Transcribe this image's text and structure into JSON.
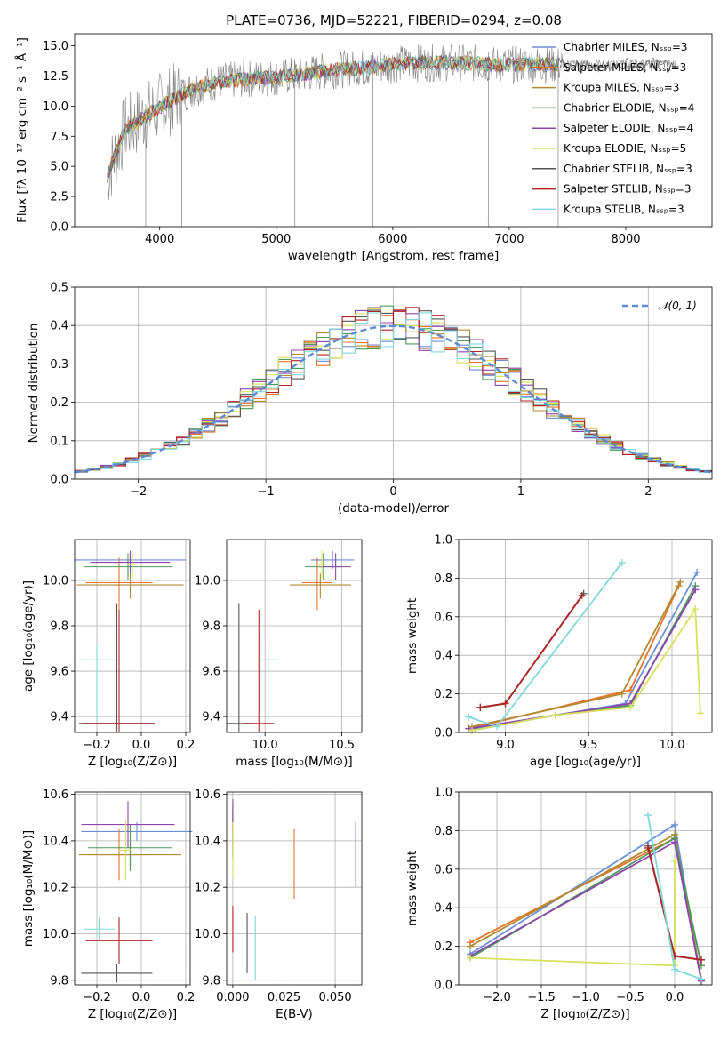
{
  "title": "PLATE=0736, MJD=52221, FIBERID=0294, z=0.08",
  "model_colors": [
    "#6a8fd8",
    "#e8732a",
    "#b08a2e",
    "#4a9a5a",
    "#8e44ad",
    "#d9e05a",
    "#555555",
    "#b22222",
    "#7fd8dc"
  ],
  "chart_data": [
    {
      "id": "spectrum",
      "type": "line",
      "xlabel": "wavelength [Angstrom, rest frame]",
      "ylabel": "Flux [fλ 10⁻¹⁷ erg cm⁻² s⁻¹ Å⁻¹]",
      "xlim": [
        3270,
        8740
      ],
      "ylim": [
        0,
        16
      ],
      "xticks": [
        "4000",
        "5000",
        "6000",
        "7000",
        "8000"
      ],
      "yticks": [
        "0.0",
        "2.5",
        "5.0",
        "7.5",
        "10.0",
        "12.5",
        "15.0"
      ],
      "grid": false,
      "legend_position": "upper right",
      "legend": [
        "Chabrier MILES, Nₛₛₚ=3",
        "Salpeter MILES, Nₛₛₚ=3",
        "Kroupa MILES, Nₛₛₚ=3",
        "Chabrier ELODIE, Nₛₛₚ=4",
        "Salpeter ELODIE, Nₛₛₚ=4",
        "Kroupa ELODIE, Nₛₛₚ=5",
        "Chabrier STELIB, Nₛₛₚ=3",
        "Salpeter STELIB, Nₛₛₚ=3",
        "Kroupa STELIB, Nₛₛₚ=3"
      ],
      "continuum": {
        "x": [
          3550,
          3700,
          3900,
          4100,
          4300,
          4500,
          4800,
          5000,
          5200,
          5500,
          5800,
          6000,
          6300,
          6600,
          6900,
          7200,
          7450
        ],
        "y": [
          4.2,
          8.0,
          9.3,
          10.5,
          11.5,
          12.0,
          12.3,
          12.4,
          12.6,
          13.0,
          13.2,
          13.5,
          13.6,
          13.6,
          13.4,
          13.5,
          13.4
        ]
      },
      "models_end_x": [
        7420,
        7420,
        7420,
        7420,
        7420,
        7420,
        8420,
        7420,
        7420
      ],
      "drops_x": [
        3880,
        4190,
        5160,
        5830,
        6820,
        7420
      ]
    },
    {
      "id": "residuals",
      "type": "histogram",
      "xlabel": "(data-model)/error",
      "ylabel": "Normed distribution",
      "xlim": [
        -2.5,
        2.5
      ],
      "ylim": [
        0,
        0.5
      ],
      "xticks": [
        "−2",
        "−1",
        "0",
        "1",
        "2"
      ],
      "yticks": [
        "0.0",
        "0.1",
        "0.2",
        "0.3",
        "0.4",
        "0.5"
      ],
      "grid": true,
      "legend": [
        "𝒩(0, 1)"
      ],
      "legend_position": "upper right",
      "bin_width": 0.1,
      "reference_curve": "normal(0, 1)"
    },
    {
      "id": "age_vs_Z",
      "type": "errorbar",
      "xlabel": "Z [log₁₀(Z/Z⊙)]",
      "ylabel": "age  [log₁₀(age/yr)]",
      "xlim": [
        -0.3,
        0.22
      ],
      "ylim": [
        9.33,
        10.18
      ],
      "xticks": [
        "−0.2",
        "0.0",
        "0.2"
      ],
      "yticks": [
        "9.4",
        "9.6",
        "9.8",
        "10.0"
      ],
      "grid": true,
      "points": [
        {
          "x": -0.05,
          "y": 10.09,
          "xerr": [
            0.25,
            0.25
          ],
          "yerr": [
            0.04,
            0.04
          ]
        },
        {
          "x": -0.1,
          "y": 9.99,
          "xerr": [
            0.15,
            0.15
          ],
          "yerr": [
            0.12,
            0.11
          ]
        },
        {
          "x": -0.05,
          "y": 9.98,
          "xerr": [
            0.24,
            0.24
          ],
          "yerr": [
            0.06,
            0.05
          ]
        },
        {
          "x": -0.06,
          "y": 10.06,
          "xerr": [
            0.2,
            0.2
          ],
          "yerr": [
            0.06,
            0.06
          ]
        },
        {
          "x": -0.05,
          "y": 10.08,
          "xerr": [
            0.18,
            0.18
          ],
          "yerr": [
            0.05,
            0.05
          ]
        },
        {
          "x": -0.04,
          "y": 10.07,
          "xerr": [
            0.02,
            0.02
          ],
          "yerr": [
            0.06,
            0.06
          ]
        },
        {
          "x": -0.11,
          "y": 9.37,
          "xerr": [
            0.17,
            0.17
          ],
          "yerr": [
            0.04,
            0.53
          ]
        },
        {
          "x": -0.1,
          "y": 9.37,
          "xerr": [
            0.16,
            0.16
          ],
          "yerr": [
            0.04,
            0.5
          ]
        },
        {
          "x": -0.2,
          "y": 9.65,
          "xerr": [
            0.08,
            0.08
          ],
          "yerr": [
            0.27,
            0.07
          ]
        }
      ]
    },
    {
      "id": "age_vs_mass",
      "type": "errorbar",
      "xlabel": "mass [log₁₀(M/M⊙)]",
      "ylabel": "",
      "xlim": [
        9.75,
        10.63
      ],
      "ylim": [
        9.33,
        10.18
      ],
      "xticks": [
        "10.0",
        "10.5"
      ],
      "yticks": [
        "9.4",
        "9.6",
        "9.8",
        "10.0"
      ],
      "grid": true,
      "points": [
        {
          "x": 10.44,
          "y": 10.09,
          "xerr": [
            0.14,
            0.14
          ],
          "yerr": [
            0.04,
            0.04
          ]
        },
        {
          "x": 10.34,
          "y": 9.99,
          "xerr": [
            0.1,
            0.1
          ],
          "yerr": [
            0.12,
            0.11
          ]
        },
        {
          "x": 10.36,
          "y": 9.98,
          "xerr": [
            0.2,
            0.2
          ],
          "yerr": [
            0.06,
            0.05
          ]
        },
        {
          "x": 10.38,
          "y": 10.06,
          "xerr": [
            0.12,
            0.12
          ],
          "yerr": [
            0.06,
            0.06
          ]
        },
        {
          "x": 10.46,
          "y": 10.06,
          "xerr": [
            0.1,
            0.1
          ],
          "yerr": [
            0.06,
            0.06
          ]
        },
        {
          "x": 10.37,
          "y": 10.07,
          "xerr": [
            0.03,
            0.03
          ],
          "yerr": [
            0.06,
            0.06
          ]
        },
        {
          "x": 9.83,
          "y": 9.37,
          "xerr": [
            0.08,
            0.08
          ],
          "yerr": [
            0.04,
            0.53
          ]
        },
        {
          "x": 9.96,
          "y": 9.37,
          "xerr": [
            0.1,
            0.1
          ],
          "yerr": [
            0.04,
            0.5
          ]
        },
        {
          "x": 10.02,
          "y": 9.65,
          "xerr": [
            0.06,
            0.06
          ],
          "yerr": [
            0.27,
            0.07
          ]
        }
      ]
    },
    {
      "id": "weight_vs_age",
      "type": "line",
      "xlabel": "age  [log₁₀(age/yr)]",
      "ylabel": "mass weight",
      "xlim": [
        8.72,
        10.24
      ],
      "ylim": [
        0,
        1
      ],
      "xticks": [
        "9.0",
        "9.5",
        "10.0"
      ],
      "yticks": [
        "0.0",
        "0.2",
        "0.4",
        "0.6",
        "0.8",
        "1.0"
      ],
      "grid": true,
      "series": [
        {
          "x": [
            8.82,
            9.72,
            10.15
          ],
          "y": [
            0.02,
            0.15,
            0.83
          ]
        },
        {
          "x": [
            8.78,
            9.75,
            10.04
          ],
          "y": [
            0.02,
            0.22,
            0.76
          ]
        },
        {
          "x": [
            8.8,
            9.7,
            10.05
          ],
          "y": [
            0.03,
            0.2,
            0.78
          ]
        },
        {
          "x": [
            8.8,
            9.3,
            9.75,
            10.14
          ],
          "y": [
            0.01,
            0.09,
            0.14,
            0.76
          ]
        },
        {
          "x": [
            8.78,
            9.75,
            10.14
          ],
          "y": [
            0.02,
            0.15,
            0.74
          ]
        },
        {
          "x": [
            8.8,
            9.3,
            9.75,
            10.14,
            10.17
          ],
          "y": [
            0.01,
            0.09,
            0.13,
            0.64,
            0.1
          ]
        },
        {
          "x": [
            8.85,
            9.0,
            9.47
          ],
          "y": [
            0.13,
            0.15,
            0.72
          ]
        },
        {
          "x": [
            8.85,
            9.0,
            9.46
          ],
          "y": [
            0.13,
            0.15,
            0.71
          ]
        },
        {
          "x": [
            8.78,
            8.95,
            9.7
          ],
          "y": [
            0.08,
            0.03,
            0.88
          ]
        }
      ]
    },
    {
      "id": "mass_vs_Z",
      "type": "errorbar",
      "xlabel": "Z [log₁₀(Z/Z⊙)]",
      "ylabel": "mass [log₁₀(M/M⊙)]",
      "xlim": [
        -0.3,
        0.22
      ],
      "ylim": [
        9.78,
        10.61
      ],
      "xticks": [
        "−0.2",
        "0.0",
        "0.2"
      ],
      "yticks": [
        "9.8",
        "10.0",
        "10.2",
        "10.4",
        "10.6"
      ],
      "grid": true,
      "points": [
        {
          "x": -0.02,
          "y": 10.44,
          "xerr": [
            0.25,
            0.25
          ],
          "yerr": [
            0.04,
            0.04
          ]
        },
        {
          "x": -0.1,
          "y": 10.34,
          "xerr": [
            0.14,
            0.14
          ],
          "yerr": [
            0.11,
            0.11
          ]
        },
        {
          "x": -0.05,
          "y": 10.34,
          "xerr": [
            0.23,
            0.23
          ],
          "yerr": [
            0.05,
            0.05
          ]
        },
        {
          "x": -0.05,
          "y": 10.37,
          "xerr": [
            0.19,
            0.19
          ],
          "yerr": [
            0.1,
            0.1
          ]
        },
        {
          "x": -0.06,
          "y": 10.47,
          "xerr": [
            0.21,
            0.21
          ],
          "yerr": [
            0.1,
            0.1
          ]
        },
        {
          "x": -0.07,
          "y": 10.36,
          "xerr": [
            0.03,
            0.03
          ],
          "yerr": [
            0.13,
            0.13
          ]
        },
        {
          "x": -0.11,
          "y": 9.83,
          "xerr": [
            0.16,
            0.16
          ],
          "yerr": [
            0.04,
            0.04
          ]
        },
        {
          "x": -0.1,
          "y": 9.97,
          "xerr": [
            0.15,
            0.15
          ],
          "yerr": [
            0.1,
            0.1
          ]
        },
        {
          "x": -0.19,
          "y": 10.02,
          "xerr": [
            0.07,
            0.07
          ],
          "yerr": [
            0.05,
            0.05
          ]
        }
      ]
    },
    {
      "id": "mass_vs_ebv",
      "type": "errorbar",
      "xlabel": "E(B-V)",
      "ylabel": "",
      "xlim": [
        -0.003,
        0.063
      ],
      "ylim": [
        9.78,
        10.61
      ],
      "xticks": [
        "0.000",
        "0.025",
        "0.050"
      ],
      "yticks": [
        "9.8",
        "10.0",
        "10.2",
        "10.4",
        "10.6"
      ],
      "grid": true,
      "points": [
        {
          "x": 0.06,
          "y": 10.34,
          "xerr": [
            0,
            0
          ],
          "yerr": [
            0.14,
            0.14
          ]
        },
        {
          "x": 0.03,
          "y": 10.3,
          "xerr": [
            0,
            0
          ],
          "yerr": [
            0.15,
            0.15
          ]
        },
        {
          "x": 0.0,
          "y": 10.43,
          "xerr": [
            0,
            0
          ],
          "yerr": [
            0.1,
            0.1
          ]
        },
        {
          "x": 0.0,
          "y": 10.44,
          "xerr": [
            0,
            0
          ],
          "yerr": [
            0.12,
            0.12
          ]
        },
        {
          "x": 0.0,
          "y": 10.48,
          "xerr": [
            0,
            0
          ],
          "yerr": [
            0.1,
            0.1
          ]
        },
        {
          "x": 0.0,
          "y": 10.36,
          "xerr": [
            0,
            0
          ],
          "yerr": [
            0.12,
            0.12
          ]
        },
        {
          "x": 0.007,
          "y": 9.96,
          "xerr": [
            0,
            0
          ],
          "yerr": [
            0.13,
            0.13
          ]
        },
        {
          "x": 0.0,
          "y": 10.02,
          "xerr": [
            0,
            0
          ],
          "yerr": [
            0.1,
            0.1
          ]
        },
        {
          "x": 0.011,
          "y": 9.94,
          "xerr": [
            0,
            0
          ],
          "yerr": [
            0.14,
            0.14
          ]
        }
      ]
    },
    {
      "id": "weight_vs_Z",
      "type": "line",
      "xlabel": "Z [log₁₀(Z/Z⊙)]",
      "ylabel": "mass weight",
      "xlim": [
        -2.43,
        0.42
      ],
      "ylim": [
        0,
        1
      ],
      "xticks": [
        "−2.0",
        "−1.5",
        "−1.0",
        "−0.5",
        "0.0"
      ],
      "yticks": [
        "0.0",
        "0.2",
        "0.4",
        "0.6",
        "0.8",
        "1.0"
      ],
      "grid": true,
      "series": [
        {
          "x": [
            -2.3,
            0.0,
            0.3
          ],
          "y": [
            0.16,
            0.83,
            0.02
          ]
        },
        {
          "x": [
            -2.3,
            0.0,
            0.3
          ],
          "y": [
            0.22,
            0.76,
            0.02
          ]
        },
        {
          "x": [
            -2.3,
            0.0,
            0.3
          ],
          "y": [
            0.2,
            0.78,
            0.03
          ]
        },
        {
          "x": [
            -2.3,
            0.0,
            0.3
          ],
          "y": [
            0.14,
            0.76,
            0.1
          ]
        },
        {
          "x": [
            -2.3,
            0.0,
            0.3
          ],
          "y": [
            0.15,
            0.74,
            0.02
          ]
        },
        {
          "x": [
            -2.3,
            0.0,
            0.0
          ],
          "y": [
            0.14,
            0.1,
            0.64
          ]
        },
        {
          "x": [
            -0.3,
            0.0,
            0.3
          ],
          "y": [
            0.72,
            0.15,
            0.13
          ]
        },
        {
          "x": [
            -0.3,
            0.0,
            0.3
          ],
          "y": [
            0.71,
            0.15,
            0.13
          ]
        },
        {
          "x": [
            -0.3,
            0.0,
            0.3
          ],
          "y": [
            0.88,
            0.08,
            0.03
          ]
        }
      ]
    }
  ]
}
